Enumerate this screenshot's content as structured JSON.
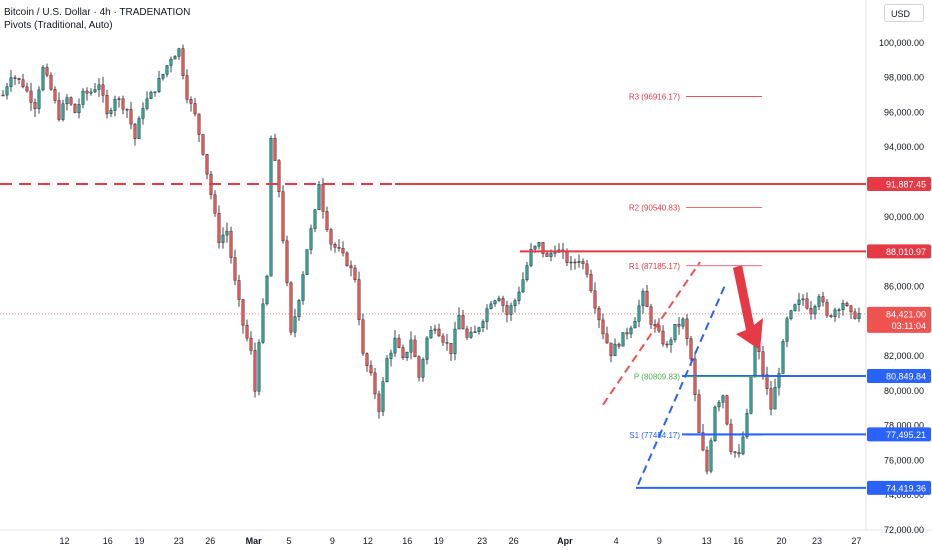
{
  "header": {
    "title": "Bitcoin / U.S. Dollar · 4h · TRADENATION",
    "indicator": "Pivots (Traditional, Auto)"
  },
  "currency_button": "USD",
  "colors": {
    "up": "#26a69a",
    "down": "#ef5350",
    "wick": "#131722",
    "resistance": "#e53945",
    "support": "#2962ff",
    "pivot_text_red": "#e53945",
    "pivot_text_green": "#4caf50",
    "pivot_text_blue": "#2962ff",
    "axis_text": "#131722"
  },
  "chart_data": {
    "type": "candlestick",
    "y_axis": {
      "ylim": [
        72000,
        102000
      ],
      "ticks": [
        "72,000.00",
        "74,000.00",
        "76,000.00",
        "78,000.00",
        "80,000.00",
        "82,000.00",
        "84,000.00",
        "86,000.00",
        "88,000.00",
        "90,000.00",
        "92,000.00",
        "94,000.00",
        "96,000.00",
        "98,000.00",
        "100,000.00"
      ]
    },
    "x_axis": {
      "tick_labels": [
        "12",
        "16",
        "19",
        "23",
        "26",
        "Mar",
        "5",
        "9",
        "12",
        "16",
        "19",
        "23",
        "26",
        "Apr",
        "4",
        "9",
        "13",
        "16",
        "20",
        "23",
        "27"
      ]
    },
    "price_path": [
      [
        0,
        97000
      ],
      [
        2,
        98200
      ],
      [
        5,
        97600
      ],
      [
        8,
        96400
      ],
      [
        10,
        98500
      ],
      [
        12,
        97300
      ],
      [
        14,
        95800
      ],
      [
        16,
        96800
      ],
      [
        18,
        96000
      ],
      [
        20,
        97000
      ],
      [
        22,
        97200
      ],
      [
        24,
        97700
      ],
      [
        26,
        95800
      ],
      [
        28,
        96900
      ],
      [
        31,
        96200
      ],
      [
        33,
        94500
      ],
      [
        35,
        96400
      ],
      [
        37,
        97000
      ],
      [
        40,
        98200
      ],
      [
        42,
        99200
      ],
      [
        44,
        99600
      ],
      [
        46,
        97000
      ],
      [
        48,
        95800
      ],
      [
        50,
        93800
      ],
      [
        52,
        91300
      ],
      [
        54,
        88700
      ],
      [
        56,
        89200
      ],
      [
        58,
        86200
      ],
      [
        60,
        83800
      ],
      [
        62,
        82200
      ],
      [
        63,
        80000
      ],
      [
        64,
        83000
      ],
      [
        66,
        86500
      ],
      [
        67,
        94500
      ],
      [
        69,
        91500
      ],
      [
        71,
        86000
      ],
      [
        72,
        83200
      ],
      [
        74,
        85400
      ],
      [
        76,
        88200
      ],
      [
        78,
        90200
      ],
      [
        79,
        92000
      ],
      [
        80,
        90500
      ],
      [
        82,
        88500
      ],
      [
        84,
        88000
      ],
      [
        86,
        87400
      ],
      [
        88,
        86500
      ],
      [
        90,
        82000
      ],
      [
        92,
        80800
      ],
      [
        94,
        79000
      ],
      [
        96,
        81800
      ],
      [
        98,
        82900
      ],
      [
        100,
        81700
      ],
      [
        102,
        83000
      ],
      [
        104,
        80800
      ],
      [
        106,
        83000
      ],
      [
        108,
        83800
      ],
      [
        110,
        83000
      ],
      [
        112,
        82300
      ],
      [
        114,
        84300
      ],
      [
        116,
        83000
      ],
      [
        118,
        83300
      ],
      [
        120,
        84200
      ],
      [
        122,
        85200
      ],
      [
        124,
        85500
      ],
      [
        126,
        84400
      ],
      [
        128,
        85200
      ],
      [
        130,
        86400
      ],
      [
        132,
        88000
      ],
      [
        134,
        88400
      ],
      [
        136,
        87600
      ],
      [
        138,
        88200
      ],
      [
        140,
        87800
      ],
      [
        142,
        87200
      ],
      [
        144,
        87600
      ],
      [
        146,
        86900
      ],
      [
        148,
        85000
      ],
      [
        150,
        83400
      ],
      [
        152,
        82200
      ],
      [
        154,
        82800
      ],
      [
        156,
        83400
      ],
      [
        158,
        84200
      ],
      [
        160,
        85500
      ],
      [
        162,
        84000
      ],
      [
        164,
        83200
      ],
      [
        166,
        82500
      ],
      [
        168,
        83600
      ],
      [
        170,
        84000
      ],
      [
        172,
        81800
      ],
      [
        174,
        77500
      ],
      [
        176,
        75400
      ],
      [
        178,
        79200
      ],
      [
        180,
        79800
      ],
      [
        182,
        76700
      ],
      [
        184,
        76200
      ],
      [
        186,
        78500
      ],
      [
        188,
        83200
      ],
      [
        190,
        81000
      ],
      [
        192,
        79000
      ],
      [
        194,
        81200
      ],
      [
        196,
        84000
      ],
      [
        198,
        84800
      ],
      [
        200,
        85300
      ],
      [
        202,
        84600
      ],
      [
        204,
        85600
      ],
      [
        206,
        84200
      ],
      [
        208,
        84700
      ],
      [
        210,
        85100
      ],
      [
        212,
        84300
      ],
      [
        214,
        84421
      ]
    ],
    "last_price": 84421.0,
    "last_price_label": "84,421.00",
    "countdown": "03:11:04",
    "levels": [
      {
        "name": "resistance-upper",
        "value": 91887.45,
        "label": "91,887.45",
        "style": "dashed-then-solid",
        "color": "#e53945"
      },
      {
        "name": "resistance-lower",
        "value": 88010.97,
        "label": "88,010.97",
        "style": "solid",
        "color": "#e53945"
      },
      {
        "name": "support-upper",
        "value": 80849.84,
        "label": "80,849.84",
        "style": "solid",
        "color": "#2962ff"
      },
      {
        "name": "support-mid",
        "value": 77495.21,
        "label": "77,495.21",
        "style": "solid",
        "color": "#2962ff"
      },
      {
        "name": "support-lower",
        "value": 74419.36,
        "label": "74,419.36",
        "style": "solid",
        "color": "#2962ff"
      }
    ],
    "pivots": [
      {
        "label": "R3 (96916.17)",
        "value": 96916.17,
        "color": "#e53945"
      },
      {
        "label": "R2 (90540.83)",
        "value": 90540.83,
        "color": "#e53945"
      },
      {
        "label": "R1 (87185.17)",
        "value": 87185.17,
        "color": "#e53945"
      },
      {
        "label": "P (80809.83)",
        "value": 80809.83,
        "color": "#4caf50"
      },
      {
        "label": "S1 (77454.17)",
        "value": 77454.17,
        "color": "#2962ff"
      }
    ]
  }
}
